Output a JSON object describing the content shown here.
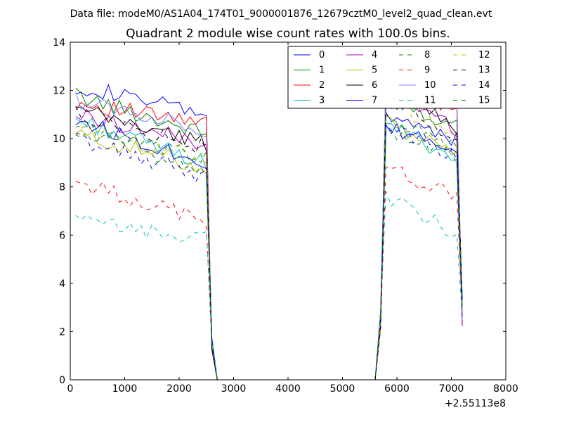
{
  "header": {
    "data_file": "Data file: modeM0/AS1A04_174T01_9000001876_12679cztM0_level2_quad_clean.evt"
  },
  "chart_data": {
    "type": "line",
    "title": "Quadrant 2 module wise count rates with 100.0s bins.",
    "xlabel": "",
    "ylabel": "",
    "x_offset_label": "+2.55113e8",
    "xlim": [
      0,
      8000
    ],
    "ylim": [
      0,
      14
    ],
    "xticks": [
      0,
      1000,
      2000,
      3000,
      4000,
      5000,
      6000,
      7000,
      8000
    ],
    "yticks": [
      0,
      2,
      4,
      6,
      8,
      10,
      12,
      14
    ],
    "grid": false,
    "legend_position": "top-right",
    "legend_columns": 4,
    "segment_a": {
      "x_start": 100,
      "x_end": 2500,
      "drop_x": [
        2600,
        2700
      ]
    },
    "segment_b": {
      "x_rise": [
        5600,
        5700
      ],
      "x_start": 5800,
      "x_end": 7100,
      "drop_x": [
        7200
      ]
    },
    "series": [
      {
        "name": "0",
        "color": "#0000ff",
        "dashed": false,
        "a_start": 12.2,
        "a_end": 11.0,
        "b_start": 11.0,
        "b_end": 10.0
      },
      {
        "name": "1",
        "color": "#008000",
        "dashed": false,
        "a_start": 11.8,
        "a_end": 10.2,
        "b_start": 11.8,
        "b_end": 10.5
      },
      {
        "name": "2",
        "color": "#ff0000",
        "dashed": false,
        "a_start": 11.5,
        "a_end": 10.6,
        "b_start": 12.5,
        "b_end": 11.0
      },
      {
        "name": "3",
        "color": "#00bfbf",
        "dashed": false,
        "a_start": 10.8,
        "a_end": 9.0,
        "b_start": 10.6,
        "b_end": 9.2
      },
      {
        "name": "4",
        "color": "#bf00bf",
        "dashed": false,
        "a_start": 11.0,
        "a_end": 9.8,
        "b_start": 12.0,
        "b_end": 10.4
      },
      {
        "name": "5",
        "color": "#bfbf00",
        "dashed": false,
        "a_start": 10.2,
        "a_end": 8.8,
        "b_start": 10.6,
        "b_end": 9.5
      },
      {
        "name": "6",
        "color": "#000000",
        "dashed": false,
        "a_start": 11.2,
        "a_end": 9.8,
        "b_start": 12.2,
        "b_end": 10.5
      },
      {
        "name": "7",
        "color": "#0000ff",
        "dashed": false,
        "a_start": 10.8,
        "a_end": 9.0,
        "b_start": 10.4,
        "b_end": 9.6
      },
      {
        "name": "8",
        "color": "#008000",
        "dashed": true,
        "a_start": 10.6,
        "a_end": 8.6,
        "b_start": 10.2,
        "b_end": 9.2
      },
      {
        "name": "9",
        "color": "#ff0000",
        "dashed": true,
        "a_start": 8.2,
        "a_end": 6.6,
        "b_start": 8.8,
        "b_end": 7.6
      },
      {
        "name": "10",
        "color": "#7f7fff",
        "dashed": false,
        "a_start": 11.6,
        "a_end": 10.4,
        "b_start": 13.0,
        "b_end": 11.6
      },
      {
        "name": "11",
        "color": "#00bfbf",
        "dashed": true,
        "a_start": 6.6,
        "a_end": 5.8,
        "b_start": 7.6,
        "b_end": 6.0
      },
      {
        "name": "12",
        "color": "#bfbf00",
        "dashed": true,
        "a_start": 10.4,
        "a_end": 9.2,
        "b_start": 11.6,
        "b_end": 10.0
      },
      {
        "name": "13",
        "color": "#000000",
        "dashed": true,
        "a_start": 11.0,
        "a_end": 9.6,
        "b_start": 11.4,
        "b_end": 10.2
      },
      {
        "name": "14",
        "color": "#0000ff",
        "dashed": true,
        "a_start": 10.0,
        "a_end": 8.4,
        "b_start": 10.6,
        "b_end": 9.2
      },
      {
        "name": "15",
        "color": "#008000",
        "dashed": true,
        "a_start": 10.2,
        "a_end": 9.2,
        "b_start": 10.8,
        "b_end": 9.6
      }
    ]
  }
}
